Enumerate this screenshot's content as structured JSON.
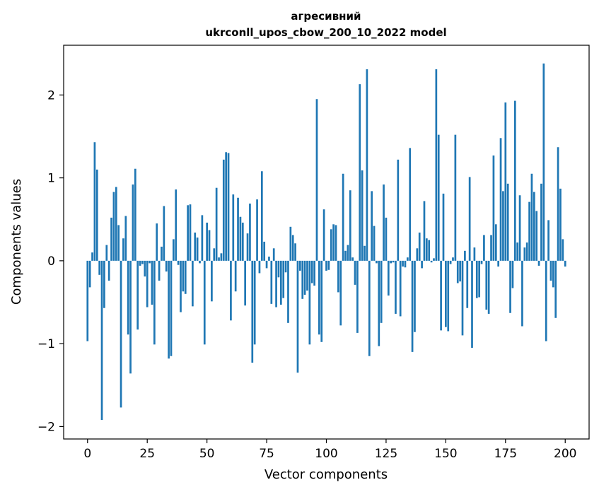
{
  "chart_data": {
    "type": "bar",
    "title_line1": "агресивний",
    "title_line2": "ukrconll_upos_cbow_200_10_2022 model",
    "xlabel": "Vector components",
    "ylabel": "Components values",
    "xlim": [
      -10,
      210
    ],
    "ylim": [
      -2.15,
      2.6
    ],
    "xticks": [
      0,
      25,
      50,
      75,
      100,
      125,
      150,
      175,
      200
    ],
    "xtick_labels": [
      "0",
      "25",
      "50",
      "75",
      "100",
      "125",
      "150",
      "175",
      "200"
    ],
    "yticks": [
      -2,
      -1,
      0,
      1,
      2
    ],
    "ytick_labels": [
      "−2",
      "−1",
      "0",
      "1",
      "2"
    ],
    "grid": false,
    "bar_color": "#1f77b4",
    "values": [
      -0.97,
      -0.32,
      0.1,
      1.43,
      1.1,
      -0.17,
      -1.92,
      -0.57,
      0.19,
      -0.24,
      0.52,
      0.83,
      0.89,
      0.43,
      -1.77,
      0.27,
      0.54,
      -0.89,
      -1.36,
      0.92,
      1.11,
      -0.83,
      -0.06,
      -0.04,
      -0.19,
      -0.56,
      -0.03,
      -0.53,
      -1.01,
      0.45,
      -0.24,
      0.17,
      0.66,
      -0.13,
      -1.18,
      -1.15,
      0.26,
      0.86,
      -0.05,
      -0.62,
      -0.37,
      -0.4,
      0.67,
      0.68,
      -0.55,
      0.34,
      0.28,
      -0.03,
      0.55,
      -1.01,
      0.46,
      0.37,
      -0.49,
      0.15,
      0.88,
      0.04,
      0.09,
      1.22,
      1.31,
      1.3,
      -0.72,
      0.8,
      -0.37,
      0.76,
      0.53,
      0.46,
      -0.54,
      0.33,
      0.69,
      -1.23,
      -1.01,
      0.74,
      -0.15,
      1.08,
      0.23,
      -0.09,
      0.05,
      -0.52,
      0.15,
      -0.56,
      -0.2,
      -0.53,
      -0.45,
      -0.14,
      -0.75,
      0.41,
      0.31,
      0.21,
      -1.35,
      -0.12,
      -0.46,
      -0.41,
      -0.36,
      -1.01,
      -0.27,
      -0.3,
      1.95,
      -0.89,
      -0.98,
      0.62,
      -0.12,
      -0.11,
      0.38,
      0.44,
      0.43,
      -0.38,
      -0.78,
      1.05,
      0.12,
      0.19,
      0.85,
      0.04,
      -0.29,
      -0.87,
      2.13,
      1.09,
      0.18,
      2.31,
      -1.15,
      0.84,
      0.42,
      -0.03,
      -1.03,
      -0.75,
      0.92,
      0.52,
      -0.42,
      -0.03,
      -0.02,
      -0.64,
      1.22,
      -0.67,
      -0.07,
      -0.08,
      0.04,
      1.36,
      -1.1,
      -0.86,
      0.15,
      0.34,
      -0.09,
      0.72,
      0.27,
      0.25,
      -0.02,
      0.03,
      2.31,
      1.52,
      -0.84,
      0.81,
      -0.8,
      -0.85,
      -0.04,
      0.04,
      1.52,
      -0.27,
      -0.25,
      -0.9,
      0.12,
      -0.57,
      1.01,
      -1.05,
      0.16,
      -0.45,
      -0.44,
      -0.04,
      0.31,
      -0.59,
      -0.64,
      0.31,
      1.27,
      0.44,
      -0.07,
      1.48,
      0.84,
      1.91,
      0.93,
      -0.63,
      -0.33,
      1.93,
      0.22,
      0.79,
      -0.79,
      0.16,
      0.22,
      0.71,
      1.05,
      0.83,
      0.6,
      -0.06,
      0.93,
      2.38,
      -0.97,
      0.49,
      -0.24,
      -0.32,
      -0.69,
      1.37,
      0.87,
      0.26,
      -0.07
    ]
  }
}
